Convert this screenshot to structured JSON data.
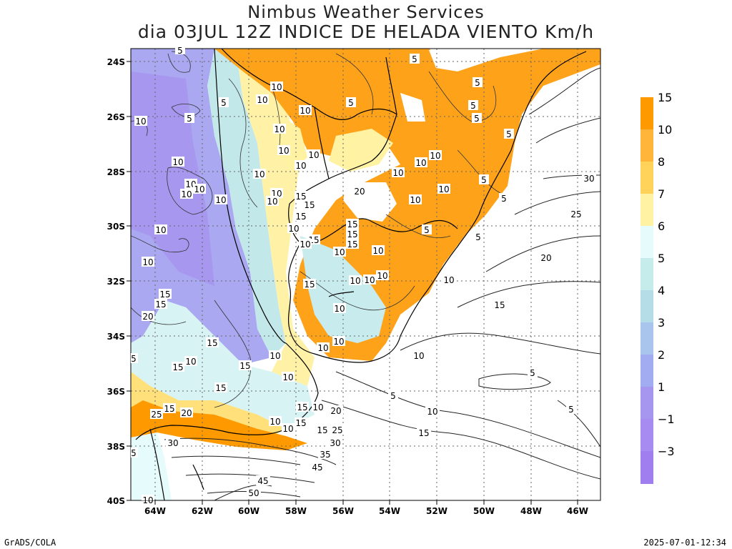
{
  "title": "Nimbus Weather Services",
  "subtitle": "dia 03JUL 12Z INDICE DE HELADA VIENTO Km/h",
  "footer_left": "GrADS/COLA",
  "footer_right": "2025-07-01-12:34",
  "lat_labels": [
    "24S",
    "26S",
    "28S",
    "30S",
    "32S",
    "34S",
    "36S",
    "38S",
    "40S"
  ],
  "lon_labels": [
    "64W",
    "62W",
    "60W",
    "58W",
    "56W",
    "54W",
    "52W",
    "50W",
    "48W",
    "46W"
  ],
  "colorbar": {
    "labels": [
      "15",
      "10",
      "8",
      "7",
      "6",
      "5",
      "4",
      "3",
      "2",
      "1",
      "−3"
    ],
    "colors": [
      "#fe9a00",
      "#ffb43a",
      "#ffd25a",
      "#fff3a3",
      "#e6fcfc",
      "#c5ecea",
      "#b4dde8",
      "#a9c5ed",
      "#a2acf0",
      "#a696f0",
      "#a07ef0"
    ]
  },
  "contour_labels": [
    "5",
    "10",
    "15",
    "20",
    "25",
    "30",
    "35",
    "45",
    "50"
  ],
  "colors": {
    "frame": "#000000",
    "grid": "#555555",
    "coast": "#000000"
  }
}
